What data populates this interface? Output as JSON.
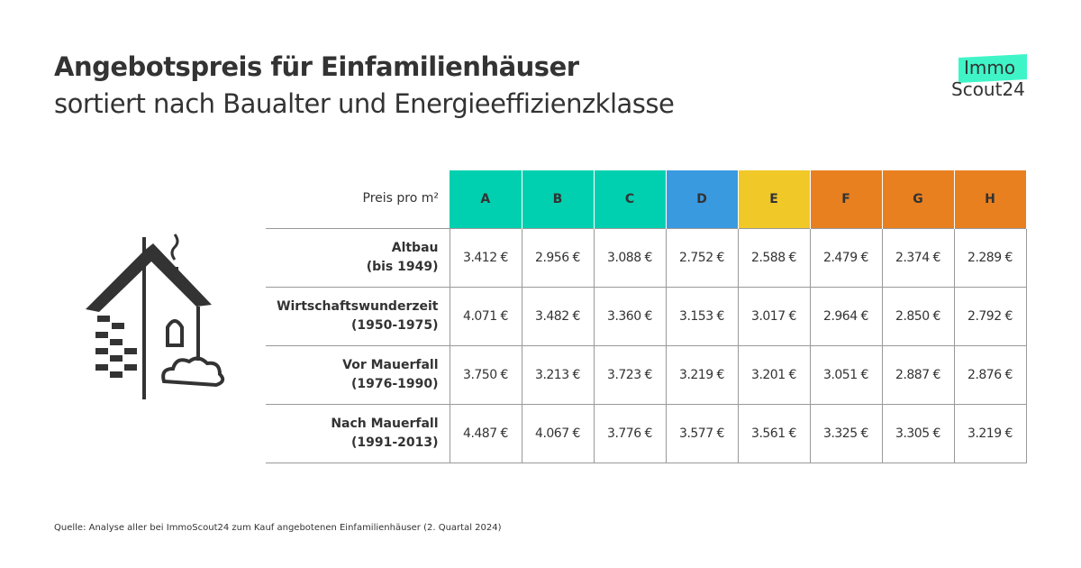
{
  "title": "Angebotspreis für Einfamilienhäuser",
  "subtitle": "sortiert nach Baualter und Energieeffizienzklasse",
  "logo": {
    "line1": "Immo",
    "line2": "Scout24"
  },
  "table": {
    "corner_label": "Preis pro m²",
    "classes": [
      {
        "label": "A",
        "color": "#00d0b0"
      },
      {
        "label": "B",
        "color": "#00d0b0"
      },
      {
        "label": "C",
        "color": "#00d0b0"
      },
      {
        "label": "D",
        "color": "#3a9ae0"
      },
      {
        "label": "E",
        "color": "#f0c828"
      },
      {
        "label": "F",
        "color": "#e88020"
      },
      {
        "label": "G",
        "color": "#e88020"
      },
      {
        "label": "H",
        "color": "#e88020"
      }
    ],
    "rows": [
      {
        "label": "Altbau",
        "sub": "(bis 1949)",
        "values": [
          "3.412 €",
          "2.956 €",
          "3.088 €",
          "2.752 €",
          "2.588 €",
          "2.479 €",
          "2.374 €",
          "2.289 €"
        ]
      },
      {
        "label": "Wirtschaftswunderzeit",
        "sub": "(1950-1975)",
        "values": [
          "4.071 €",
          "3.482 €",
          "3.360 €",
          "3.153 €",
          "3.017 €",
          "2.964 €",
          "2.850 €",
          "2.792 €"
        ]
      },
      {
        "label": "Vor Mauerfall",
        "sub": "(1976-1990)",
        "values": [
          "3.750 €",
          "3.213 €",
          "3.723 €",
          "3.219 €",
          "3.201 €",
          "3.051 €",
          "2.887 €",
          "2.876 €"
        ]
      },
      {
        "label": "Nach Mauerfall",
        "sub": "(1991-2013)",
        "values": [
          "4.487 €",
          "4.067 €",
          "3.776 €",
          "3.577 €",
          "3.561 €",
          "3.325 €",
          "3.305 €",
          "3.219 €"
        ]
      }
    ]
  },
  "source": "Quelle: Analyse aller bei ImmoScout24 zum Kauf angebotenen Einfamilienhäuser (2. Quartal 2024)"
}
